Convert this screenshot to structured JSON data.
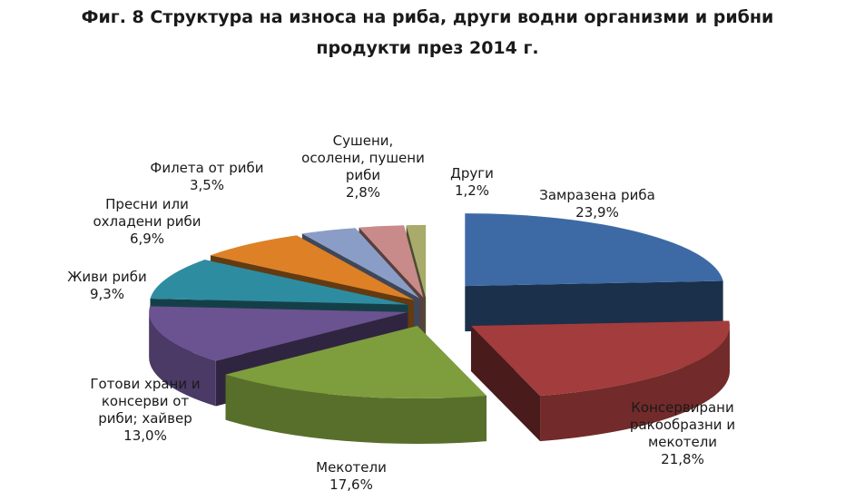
{
  "title_line1": "Фиг. 8 Структура на износа на риба, други водни организми и рибни",
  "title_line2": "продукти през 2014 г.",
  "chart_data": {
    "type": "pie",
    "title": "Фиг. 8 Структура на износа на риба, други водни организми и рибни продукти през 2014 г.",
    "slices": [
      {
        "name": "Замразена риба",
        "label_lines": [
          "Замразена риба"
        ],
        "value": 23.9,
        "value_label": "23,9%",
        "color": "#3d6aa5"
      },
      {
        "name": "Консервирани ракообразни и мекотели",
        "label_lines": [
          "Консервирани",
          "ракообразни и",
          "мекотели"
        ],
        "value": 21.8,
        "value_label": "21,8%",
        "color": "#a33c3c"
      },
      {
        "name": "Мекотели",
        "label_lines": [
          "Мекотели"
        ],
        "value": 17.6,
        "value_label": "17,6%",
        "color": "#7e9e3e"
      },
      {
        "name": "Готови храни и консерви от риби; хайвер",
        "label_lines": [
          "Готови храни и",
          "консерви от",
          "риби; хайвер"
        ],
        "value": 13.0,
        "value_label": "13,0%",
        "color": "#6a5390"
      },
      {
        "name": "Живи риби",
        "label_lines": [
          "Живи риби"
        ],
        "value": 9.3,
        "value_label": "9,3%",
        "color": "#2e8ca0"
      },
      {
        "name": "Пресни или охладени риби",
        "label_lines": [
          "Пресни или",
          "охладени риби"
        ],
        "value": 6.9,
        "value_label": "6,9%",
        "color": "#de8026"
      },
      {
        "name": "Филета от риби",
        "label_lines": [
          "Филета от риби"
        ],
        "value": 3.5,
        "value_label": "3,5%",
        "color": "#8a9dc6"
      },
      {
        "name": "Сушени, осолени, пушени риби",
        "label_lines": [
          "Сушени,",
          "осолени, пушени",
          "риби"
        ],
        "value": 2.8,
        "value_label": "2,8%",
        "color": "#c98a8a"
      },
      {
        "name": "Други",
        "label_lines": [
          "Други"
        ],
        "value": 1.2,
        "value_label": "1,2%",
        "color": "#a8ab6a"
      }
    ]
  }
}
